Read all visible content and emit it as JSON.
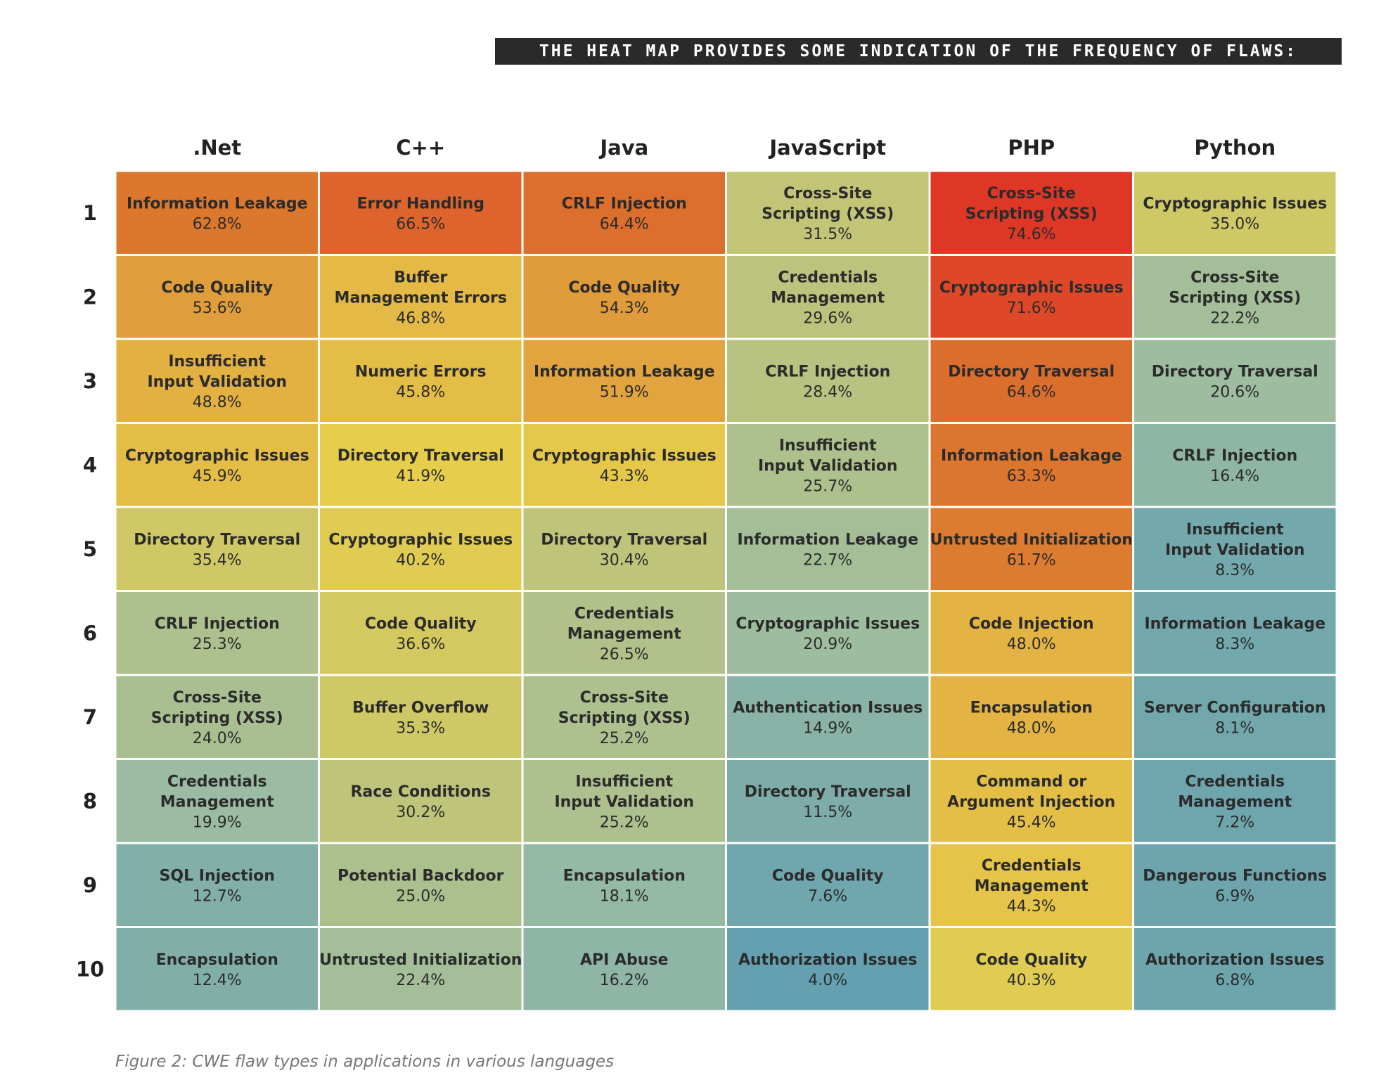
{
  "banner": "THE HEAT MAP PROVIDES SOME INDICATION OF THE FREQUENCY OF FLAWS:",
  "caption": "Figure 2: CWE flaw types in applications in various languages",
  "chart_data": {
    "type": "heatmap",
    "columns": [
      ".Net",
      "C++",
      "Java",
      "JavaScript",
      "PHP",
      "Python"
    ],
    "ranks": [
      "1",
      "2",
      "3",
      "4",
      "5",
      "6",
      "7",
      "8",
      "9",
      "10"
    ],
    "color_scale": {
      "low": "#5699b3",
      "mid_low": "#9bbca2",
      "mid": "#e6cd4c",
      "mid_high": "#dc772e",
      "high": "#df3526"
    },
    "series": [
      {
        "name": ".Net",
        "cells": [
          {
            "flaw": "Information Leakage",
            "value": 62.8
          },
          {
            "flaw": "Code Quality",
            "value": 53.6
          },
          {
            "flaw": "Insufficient\nInput Validation",
            "value": 48.8
          },
          {
            "flaw": "Cryptographic Issues",
            "value": 45.9
          },
          {
            "flaw": "Directory Traversal",
            "value": 35.4
          },
          {
            "flaw": "CRLF Injection",
            "value": 25.3
          },
          {
            "flaw": "Cross-Site\nScripting (XSS)",
            "value": 24.0
          },
          {
            "flaw": "Credentials\nManagement",
            "value": 19.9
          },
          {
            "flaw": "SQL Injection",
            "value": 12.7
          },
          {
            "flaw": "Encapsulation",
            "value": 12.4
          }
        ]
      },
      {
        "name": "C++",
        "cells": [
          {
            "flaw": "Error Handling",
            "value": 66.5
          },
          {
            "flaw": "Buffer\nManagement Errors",
            "value": 46.8
          },
          {
            "flaw": "Numeric Errors",
            "value": 45.8
          },
          {
            "flaw": "Directory Traversal",
            "value": 41.9
          },
          {
            "flaw": "Cryptographic Issues",
            "value": 40.2
          },
          {
            "flaw": "Code Quality",
            "value": 36.6
          },
          {
            "flaw": "Buffer Overflow",
            "value": 35.3
          },
          {
            "flaw": "Race Conditions",
            "value": 30.2
          },
          {
            "flaw": "Potential Backdoor",
            "value": 25.0
          },
          {
            "flaw": "Untrusted Initialization",
            "value": 22.4
          }
        ]
      },
      {
        "name": "Java",
        "cells": [
          {
            "flaw": "CRLF Injection",
            "value": 64.4
          },
          {
            "flaw": "Code Quality",
            "value": 54.3
          },
          {
            "flaw": "Information Leakage",
            "value": 51.9
          },
          {
            "flaw": "Cryptographic Issues",
            "value": 43.3
          },
          {
            "flaw": "Directory Traversal",
            "value": 30.4
          },
          {
            "flaw": "Credentials\nManagement",
            "value": 26.5
          },
          {
            "flaw": "Cross-Site\nScripting (XSS)",
            "value": 25.2
          },
          {
            "flaw": "Insufficient\nInput Validation",
            "value": 25.2
          },
          {
            "flaw": "Encapsulation",
            "value": 18.1
          },
          {
            "flaw": "API Abuse",
            "value": 16.2
          }
        ]
      },
      {
        "name": "JavaScript",
        "cells": [
          {
            "flaw": "Cross-Site\nScripting (XSS)",
            "value": 31.5
          },
          {
            "flaw": "Credentials\nManagement",
            "value": 29.6
          },
          {
            "flaw": "CRLF Injection",
            "value": 28.4
          },
          {
            "flaw": "Insufficient\nInput Validation",
            "value": 25.7
          },
          {
            "flaw": "Information Leakage",
            "value": 22.7
          },
          {
            "flaw": "Cryptographic Issues",
            "value": 20.9
          },
          {
            "flaw": "Authentication Issues",
            "value": 14.9
          },
          {
            "flaw": "Directory Traversal",
            "value": 11.5
          },
          {
            "flaw": "Code Quality",
            "value": 7.6
          },
          {
            "flaw": "Authorization Issues",
            "value": 4.0
          }
        ]
      },
      {
        "name": "PHP",
        "cells": [
          {
            "flaw": "Cross-Site\nScripting (XSS)",
            "value": 74.6
          },
          {
            "flaw": "Cryptographic Issues",
            "value": 71.6
          },
          {
            "flaw": "Directory Traversal",
            "value": 64.6
          },
          {
            "flaw": "Information Leakage",
            "value": 63.3
          },
          {
            "flaw": "Untrusted Initialization",
            "value": 61.7
          },
          {
            "flaw": "Code Injection",
            "value": 48.0
          },
          {
            "flaw": "Encapsulation",
            "value": 48.0
          },
          {
            "flaw": "Command or\nArgument Injection",
            "value": 45.4
          },
          {
            "flaw": "Credentials\nManagement",
            "value": 44.3
          },
          {
            "flaw": "Code Quality",
            "value": 40.3
          }
        ]
      },
      {
        "name": "Python",
        "cells": [
          {
            "flaw": "Cryptographic Issues",
            "value": 35.0
          },
          {
            "flaw": "Cross-Site\nScripting (XSS)",
            "value": 22.2
          },
          {
            "flaw": "Directory Traversal",
            "value": 20.6
          },
          {
            "flaw": "CRLF Injection",
            "value": 16.4
          },
          {
            "flaw": "Insufficient\nInput Validation",
            "value": 8.3
          },
          {
            "flaw": "Information Leakage",
            "value": 8.3
          },
          {
            "flaw": "Server Configuration",
            "value": 8.1
          },
          {
            "flaw": "Credentials\nManagement",
            "value": 7.2
          },
          {
            "flaw": "Dangerous Functions",
            "value": 6.9
          },
          {
            "flaw": "Authorization Issues",
            "value": 6.8
          }
        ]
      }
    ]
  }
}
